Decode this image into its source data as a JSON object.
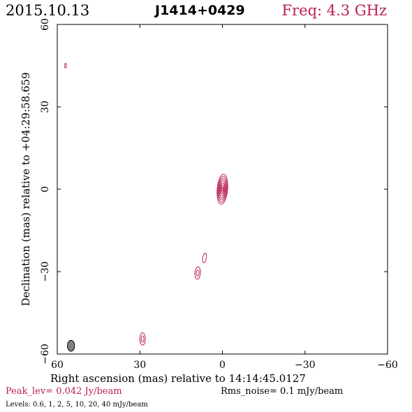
{
  "header": {
    "date": "2015.10.13",
    "source": "J1414+0429",
    "freq": "Freq: 4.3 GHz"
  },
  "footer": {
    "peak": "Peak_lev=  0.042 Jy/beam",
    "rms": "Rms_noise=  0.1 mJy/beam",
    "levels": "Levels: 0.6,   1,   2,   5,  10,  20,  40 mJy/beam"
  },
  "colors": {
    "contour": "#b8204f",
    "beam": "#808080"
  },
  "chart_data": {
    "type": "contour",
    "title": "J1414+0429",
    "xlabel": "Right ascension (mas) relative to 14:14:45.0127",
    "ylabel": "Declination (mas) relative to +04:29:58.659",
    "xlim": [
      60,
      -60
    ],
    "ylim": [
      -60,
      60
    ],
    "x_ticks": [
      60,
      30,
      0,
      -30,
      -60
    ],
    "y_ticks": [
      -60,
      -30,
      0,
      30,
      60
    ],
    "x_tick_labels": [
      "60",
      "30",
      "0",
      "−30",
      "−60"
    ],
    "y_tick_labels": [
      "−60",
      "−30",
      "0",
      "30",
      "60"
    ],
    "contour_levels_mJy": [
      0.6,
      1,
      2,
      5,
      10,
      20,
      40
    ],
    "components": [
      {
        "x": 0,
        "y": 0,
        "levels": 7,
        "major": 11,
        "minor": 3.8,
        "pa": 5
      },
      {
        "x": 6.5,
        "y": -25,
        "levels": 1,
        "major": 3.5,
        "minor": 1.3,
        "pa": 10
      },
      {
        "x": 9,
        "y": -30.5,
        "levels": 2,
        "major": 4.5,
        "minor": 2,
        "pa": 5
      },
      {
        "x": 29,
        "y": -54.5,
        "levels": 2,
        "major": 4.5,
        "minor": 2,
        "pa": 0
      },
      {
        "x": 57,
        "y": 45,
        "levels": 1,
        "major": 1.8,
        "minor": 0.6,
        "pa": 0
      }
    ],
    "beam": {
      "x": 55,
      "y": -57,
      "major": 4,
      "minor": 2.6,
      "pa": 0
    }
  }
}
